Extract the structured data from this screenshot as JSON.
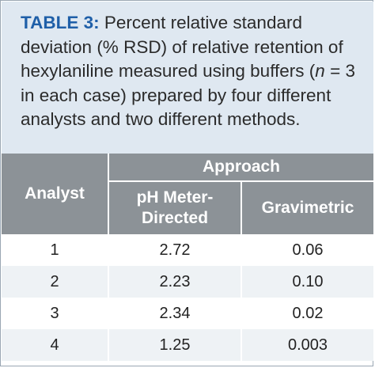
{
  "caption": {
    "label": "TABLE 3:",
    "text_before_n": " Percent relative standard deviation (% RSD) of relative retention of hexylaniline measured using buffers (",
    "n_symbol": "n",
    "text_after_n": " = 3 in each case) prepared by four different analysts and two different methods."
  },
  "table": {
    "header": {
      "analyst": "Analyst",
      "approach": "Approach",
      "col_ph_line1": "pH Meter-",
      "col_ph_line2": "Directed",
      "col_grav": "Gravimetric"
    },
    "rows": [
      {
        "analyst": "1",
        "ph": "2.72",
        "grav": "0.06"
      },
      {
        "analyst": "2",
        "ph": "2.23",
        "grav": "0.10"
      },
      {
        "analyst": "3",
        "ph": "2.34",
        "grav": "0.02"
      },
      {
        "analyst": "4",
        "ph": "1.25",
        "grav": "0.003"
      }
    ]
  }
}
